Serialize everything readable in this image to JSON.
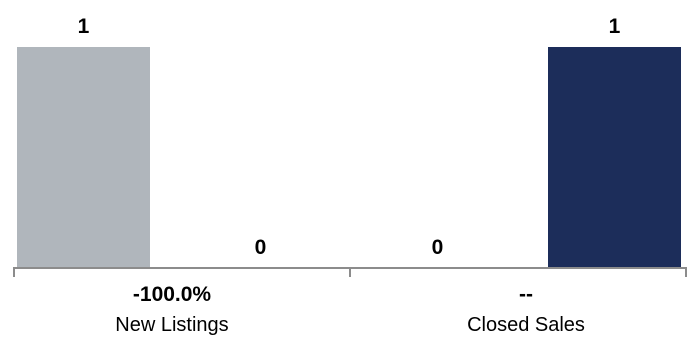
{
  "chart_data": {
    "type": "bar",
    "categories": [
      "New Listings",
      "Closed Sales"
    ],
    "category_changes": [
      "-100.0%",
      "--"
    ],
    "series": [
      {
        "values": [
          1,
          0
        ],
        "color": "#b0b6bc"
      },
      {
        "values": [
          0,
          1
        ],
        "color": "#1c2d5a"
      }
    ],
    "data_labels": [
      [
        "1",
        "0"
      ],
      [
        "0",
        "1"
      ]
    ],
    "ylim": [
      0,
      1
    ],
    "grid": false,
    "legend": "none"
  },
  "colors": {
    "axis": "#8c8c8c",
    "text": "#000000"
  }
}
